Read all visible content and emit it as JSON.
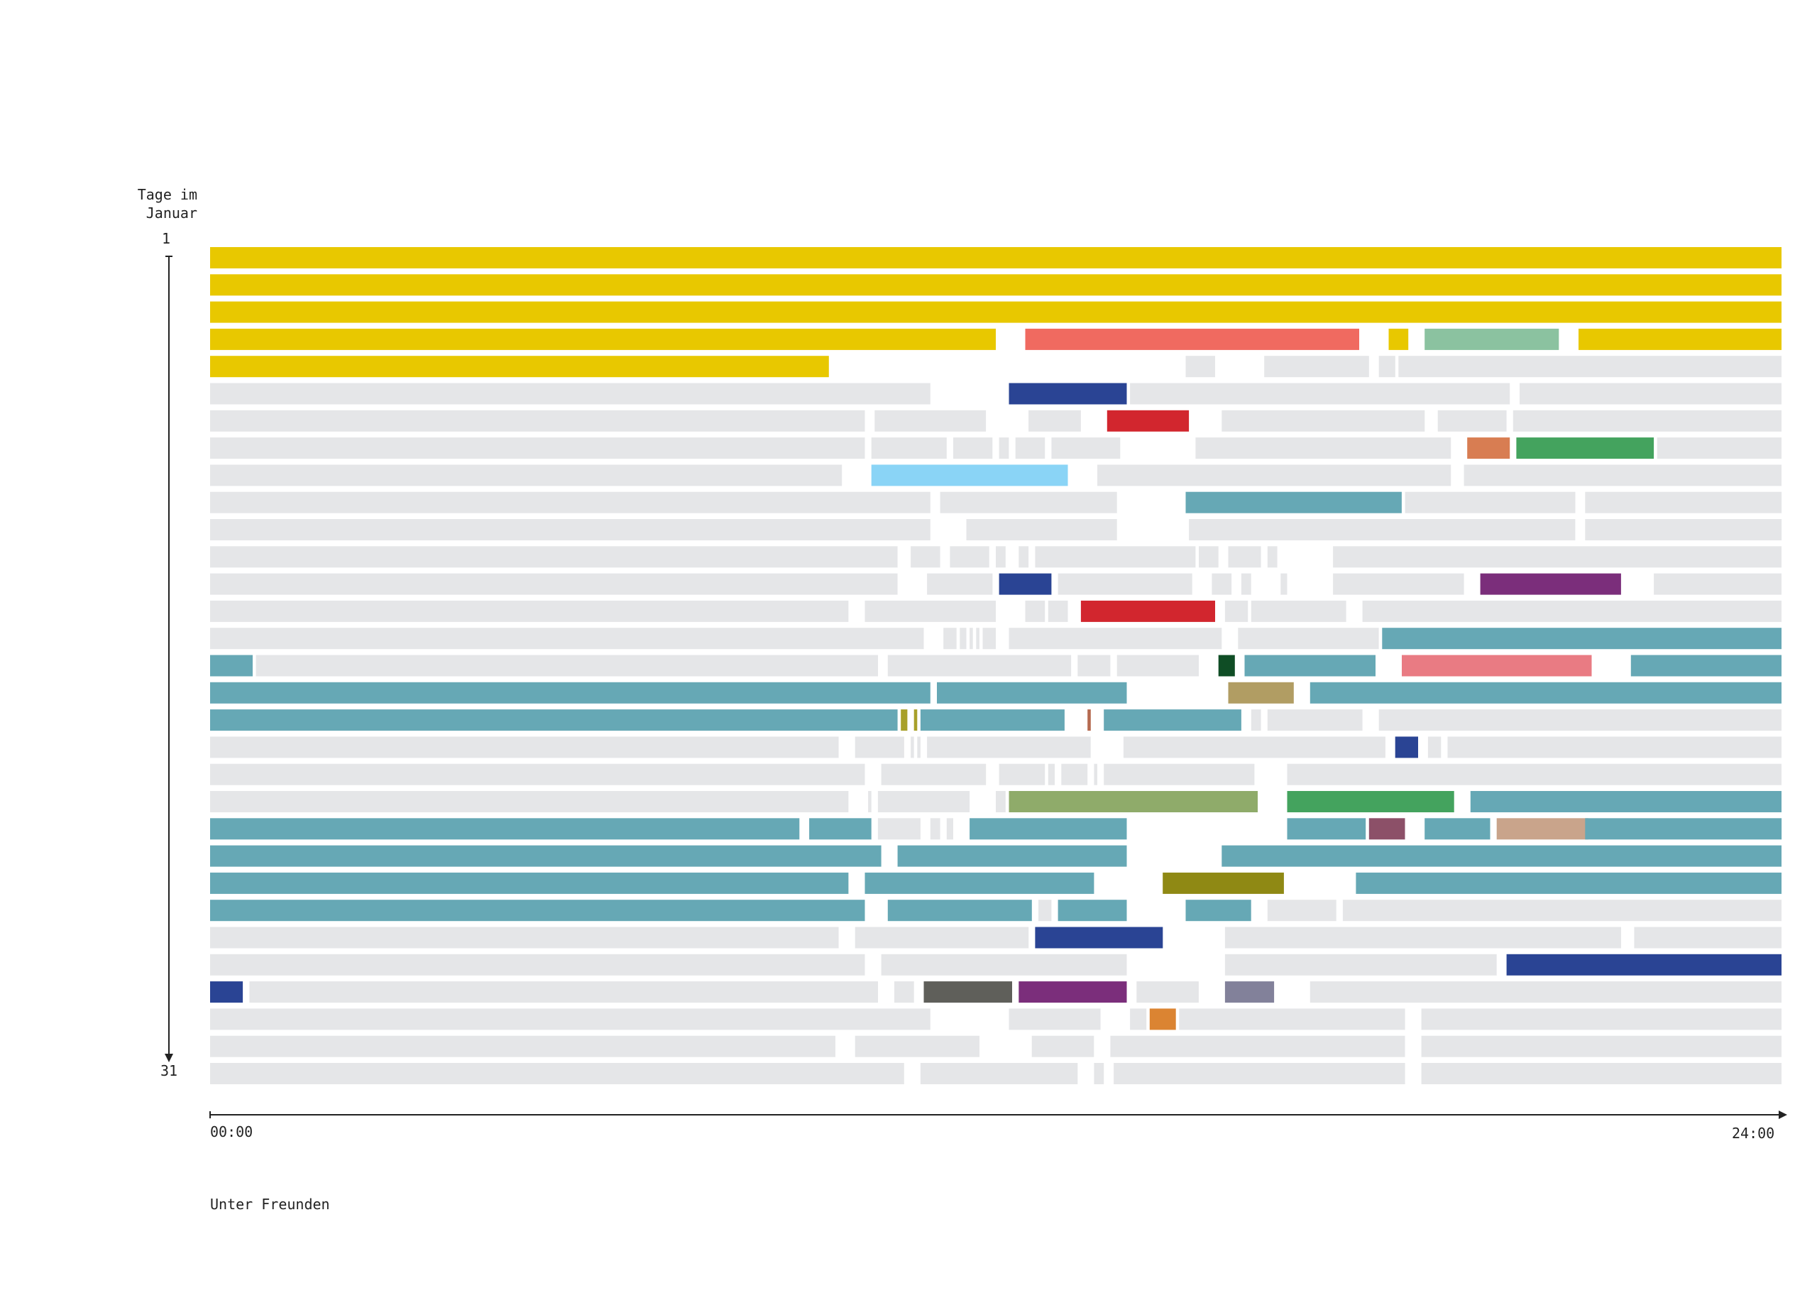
{
  "chart_data": {
    "type": "bar",
    "subtype": "daily-timeline",
    "title": "",
    "caption": "Unter Freunden",
    "ylabel": [
      "Tage im",
      "Januar"
    ],
    "y_tick_start": "1",
    "y_tick_end": "31",
    "x_tick_start": "00:00",
    "x_tick_end": "24:00",
    "xlim": [
      0,
      24
    ],
    "ylim": [
      1,
      31
    ],
    "grid": false,
    "legend": "none",
    "gap_color": "#e5e6e8",
    "colors": {
      "Y": "#e8c800",
      "SL": "#f06a60",
      "MI": "#8bc2a0",
      "NV": "#2a4494",
      "RD": "#d2262e",
      "OR": "#d87d52",
      "GR": "#44a35e",
      "LB": "#8ad4f6",
      "TL": "#66a8b5",
      "PU": "#7b2e7b",
      "DG": "#0f4d25",
      "PK": "#e97b83",
      "KH": "#b19d63",
      "OV": "#a8a02a",
      "BR": "#b56a50",
      "OG": "#8fab6a",
      "MV": "#8c5068",
      "TN": "#c9a48b",
      "OL": "#8f8914",
      "GY": "#5f5f5a",
      "GP": "#82819a",
      "OA": "#db8432",
      "G": "#e5e6e8"
    },
    "days": [
      {
        "day": 1,
        "segments": [
          [
            0,
            24,
            "Y"
          ]
        ]
      },
      {
        "day": 2,
        "segments": [
          [
            0,
            24,
            "Y"
          ]
        ]
      },
      {
        "day": 3,
        "segments": [
          [
            0,
            24,
            "Y"
          ]
        ]
      },
      {
        "day": 4,
        "segments": [
          [
            0,
            12.0,
            "Y"
          ],
          [
            12.45,
            17.55,
            "SL"
          ],
          [
            18.0,
            18.3,
            "Y"
          ],
          [
            18.55,
            20.6,
            "MI"
          ],
          [
            20.9,
            24,
            "Y"
          ]
        ]
      },
      {
        "day": 5,
        "segments": [
          [
            0,
            9.45,
            "Y"
          ],
          [
            14.9,
            15.35,
            "G"
          ],
          [
            16.1,
            17.7,
            "G"
          ],
          [
            17.85,
            18.1,
            "G"
          ],
          [
            18.15,
            24,
            "G"
          ]
        ]
      },
      {
        "day": 6,
        "segments": [
          [
            0,
            11.0,
            "G"
          ],
          [
            12.2,
            14.0,
            "NV"
          ],
          [
            14.05,
            19.85,
            "G"
          ],
          [
            20.0,
            24,
            "G"
          ]
        ]
      },
      {
        "day": 7,
        "segments": [
          [
            0,
            10.0,
            "G"
          ],
          [
            10.15,
            11.85,
            "G"
          ],
          [
            12.5,
            13.3,
            "G"
          ],
          [
            13.7,
            14.95,
            "RD"
          ],
          [
            15.45,
            18.55,
            "G"
          ],
          [
            18.75,
            19.8,
            "G"
          ],
          [
            19.9,
            24,
            "G"
          ]
        ]
      },
      {
        "day": 8,
        "segments": [
          [
            0,
            10.0,
            "G"
          ],
          [
            10.1,
            11.25,
            "G"
          ],
          [
            11.35,
            11.95,
            "G"
          ],
          [
            12.05,
            12.2,
            "G"
          ],
          [
            12.3,
            12.75,
            "G"
          ],
          [
            12.85,
            13.9,
            "G"
          ],
          [
            15.05,
            18.95,
            "G"
          ],
          [
            19.2,
            19.85,
            "OR"
          ],
          [
            19.95,
            22.05,
            "GR"
          ],
          [
            22.1,
            24,
            "G"
          ]
        ]
      },
      {
        "day": 9,
        "segments": [
          [
            0,
            9.65,
            "G"
          ],
          [
            10.1,
            13.1,
            "LB"
          ],
          [
            13.55,
            18.95,
            "G"
          ],
          [
            19.15,
            24,
            "G"
          ]
        ]
      },
      {
        "day": 10,
        "segments": [
          [
            0,
            11.0,
            "G"
          ],
          [
            11.15,
            13.85,
            "G"
          ],
          [
            14.9,
            18.2,
            "TL"
          ],
          [
            18.25,
            20.85,
            "G"
          ],
          [
            21.0,
            24,
            "G"
          ]
        ]
      },
      {
        "day": 11,
        "segments": [
          [
            0,
            11.0,
            "G"
          ],
          [
            11.55,
            13.85,
            "G"
          ],
          [
            14.95,
            20.85,
            "G"
          ],
          [
            21.0,
            24,
            "G"
          ]
        ]
      },
      {
        "day": 12,
        "segments": [
          [
            0,
            10.5,
            "G"
          ],
          [
            10.7,
            11.15,
            "G"
          ],
          [
            11.3,
            11.9,
            "G"
          ],
          [
            12.0,
            12.15,
            "G"
          ],
          [
            12.35,
            12.5,
            "G"
          ],
          [
            12.6,
            15.05,
            "G"
          ],
          [
            15.1,
            15.4,
            "G"
          ],
          [
            15.55,
            16.05,
            "G"
          ],
          [
            16.15,
            16.3,
            "G"
          ],
          [
            17.15,
            24,
            "G"
          ]
        ]
      },
      {
        "day": 13,
        "segments": [
          [
            0,
            10.5,
            "G"
          ],
          [
            10.95,
            11.95,
            "G"
          ],
          [
            12.05,
            12.85,
            "NV"
          ],
          [
            12.95,
            15.0,
            "G"
          ],
          [
            15.3,
            15.6,
            "G"
          ],
          [
            15.75,
            15.9,
            "G"
          ],
          [
            16.35,
            16.45,
            "G"
          ],
          [
            17.15,
            19.15,
            "G"
          ],
          [
            19.4,
            21.55,
            "PU"
          ],
          [
            22.05,
            24,
            "G"
          ]
        ]
      },
      {
        "day": 14,
        "segments": [
          [
            0,
            9.75,
            "G"
          ],
          [
            10.0,
            12.0,
            "G"
          ],
          [
            12.45,
            12.75,
            "G"
          ],
          [
            12.8,
            13.1,
            "G"
          ],
          [
            13.3,
            15.35,
            "RD"
          ],
          [
            15.5,
            15.85,
            "G"
          ],
          [
            15.9,
            17.35,
            "G"
          ],
          [
            17.6,
            24,
            "G"
          ]
        ]
      },
      {
        "day": 15,
        "segments": [
          [
            0,
            10.9,
            "G"
          ],
          [
            11.2,
            11.4,
            "G"
          ],
          [
            11.45,
            11.55,
            "G"
          ],
          [
            11.6,
            11.65,
            "G"
          ],
          [
            11.7,
            11.75,
            "G"
          ],
          [
            11.8,
            12.0,
            "G"
          ],
          [
            12.2,
            15.45,
            "G"
          ],
          [
            15.7,
            17.85,
            "G"
          ],
          [
            17.9,
            24,
            "TL"
          ]
        ]
      },
      {
        "day": 16,
        "segments": [
          [
            0,
            0.65,
            "TL"
          ],
          [
            0.7,
            10.2,
            "G"
          ],
          [
            10.35,
            13.15,
            "G"
          ],
          [
            13.25,
            13.75,
            "G"
          ],
          [
            13.85,
            15.1,
            "G"
          ],
          [
            15.4,
            15.65,
            "DG"
          ],
          [
            15.8,
            17.8,
            "TL"
          ],
          [
            18.2,
            21.1,
            "PK"
          ],
          [
            21.7,
            24,
            "TL"
          ]
        ]
      },
      {
        "day": 17,
        "segments": [
          [
            0,
            11.0,
            "TL"
          ],
          [
            11.1,
            14.0,
            "TL"
          ],
          [
            15.55,
            16.55,
            "KH"
          ],
          [
            16.8,
            24,
            "TL"
          ]
        ]
      },
      {
        "day": 18,
        "segments": [
          [
            0,
            10.5,
            "TL"
          ],
          [
            10.55,
            10.65,
            "OV"
          ],
          [
            10.75,
            10.8,
            "OV"
          ],
          [
            10.85,
            13.05,
            "TL"
          ],
          [
            13.4,
            13.45,
            "BR"
          ],
          [
            13.65,
            15.75,
            "TL"
          ],
          [
            15.9,
            16.05,
            "G"
          ],
          [
            16.15,
            17.6,
            "G"
          ],
          [
            17.85,
            24,
            "G"
          ]
        ]
      },
      {
        "day": 19,
        "segments": [
          [
            0,
            9.6,
            "G"
          ],
          [
            9.85,
            10.6,
            "G"
          ],
          [
            10.7,
            10.75,
            "G"
          ],
          [
            10.8,
            10.85,
            "G"
          ],
          [
            10.95,
            13.45,
            "G"
          ],
          [
            13.95,
            17.95,
            "G"
          ],
          [
            18.1,
            18.45,
            "NV"
          ],
          [
            18.6,
            18.8,
            "G"
          ],
          [
            18.9,
            24,
            "G"
          ]
        ]
      },
      {
        "day": 20,
        "segments": [
          [
            0,
            10.0,
            "G"
          ],
          [
            10.25,
            11.85,
            "G"
          ],
          [
            12.05,
            12.75,
            "G"
          ],
          [
            12.8,
            12.9,
            "G"
          ],
          [
            13.0,
            13.4,
            "G"
          ],
          [
            13.5,
            13.55,
            "G"
          ],
          [
            13.65,
            15.95,
            "G"
          ],
          [
            16.45,
            24,
            "G"
          ]
        ]
      },
      {
        "day": 21,
        "segments": [
          [
            0,
            9.75,
            "G"
          ],
          [
            10.05,
            10.1,
            "G"
          ],
          [
            10.2,
            11.6,
            "G"
          ],
          [
            12.0,
            12.15,
            "G"
          ],
          [
            12.2,
            16.0,
            "OG"
          ],
          [
            16.45,
            19.0,
            "GR"
          ],
          [
            19.25,
            24,
            "TL"
          ]
        ]
      },
      {
        "day": 22,
        "segments": [
          [
            0,
            9.0,
            "TL"
          ],
          [
            9.15,
            10.1,
            "TL"
          ],
          [
            10.2,
            10.85,
            "G"
          ],
          [
            11.0,
            11.15,
            "G"
          ],
          [
            11.25,
            11.35,
            "G"
          ],
          [
            11.6,
            14.0,
            "TL"
          ],
          [
            16.45,
            17.65,
            "TL"
          ],
          [
            17.7,
            18.25,
            "MV"
          ],
          [
            18.55,
            19.55,
            "TL"
          ],
          [
            19.65,
            21.05,
            "TN"
          ],
          [
            21.0,
            24,
            "TL"
          ]
        ]
      },
      {
        "day": 23,
        "segments": [
          [
            0,
            10.25,
            "TL"
          ],
          [
            10.5,
            14.0,
            "TL"
          ],
          [
            15.45,
            24,
            "TL"
          ]
        ]
      },
      {
        "day": 24,
        "segments": [
          [
            0,
            9.75,
            "TL"
          ],
          [
            10.0,
            13.5,
            "TL"
          ],
          [
            14.55,
            16.4,
            "OL"
          ],
          [
            17.5,
            24,
            "TL"
          ]
        ]
      },
      {
        "day": 25,
        "segments": [
          [
            0,
            10.0,
            "TL"
          ],
          [
            10.35,
            12.55,
            "TL"
          ],
          [
            12.65,
            12.85,
            "G"
          ],
          [
            12.95,
            14.0,
            "TL"
          ],
          [
            14.9,
            15.9,
            "TL"
          ],
          [
            16.15,
            17.2,
            "G"
          ],
          [
            17.3,
            24,
            "G"
          ]
        ]
      },
      {
        "day": 26,
        "segments": [
          [
            0,
            9.6,
            "G"
          ],
          [
            9.85,
            12.5,
            "G"
          ],
          [
            12.6,
            14.55,
            "NV"
          ],
          [
            15.5,
            21.55,
            "G"
          ],
          [
            21.75,
            24,
            "G"
          ]
        ]
      },
      {
        "day": 27,
        "segments": [
          [
            0,
            10.0,
            "G"
          ],
          [
            10.25,
            14.0,
            "G"
          ],
          [
            15.5,
            19.65,
            "G"
          ],
          [
            19.8,
            24,
            "NV"
          ]
        ]
      },
      {
        "day": 28,
        "segments": [
          [
            0,
            0.5,
            "NV"
          ],
          [
            0.6,
            10.2,
            "G"
          ],
          [
            10.45,
            10.75,
            "G"
          ],
          [
            10.9,
            12.25,
            "GY"
          ],
          [
            12.35,
            14.0,
            "PU"
          ],
          [
            14.15,
            15.1,
            "G"
          ],
          [
            15.5,
            16.25,
            "GP"
          ],
          [
            16.8,
            24,
            "G"
          ]
        ]
      },
      {
        "day": 29,
        "segments": [
          [
            0,
            11.0,
            "G"
          ],
          [
            12.2,
            13.6,
            "G"
          ],
          [
            14.05,
            14.3,
            "G"
          ],
          [
            14.35,
            14.75,
            "OA"
          ],
          [
            14.8,
            18.25,
            "G"
          ],
          [
            18.5,
            24,
            "G"
          ]
        ]
      },
      {
        "day": 30,
        "segments": [
          [
            0,
            9.55,
            "G"
          ],
          [
            9.85,
            11.75,
            "G"
          ],
          [
            12.55,
            13.5,
            "G"
          ],
          [
            13.75,
            18.25,
            "G"
          ],
          [
            18.5,
            24,
            "G"
          ]
        ]
      },
      {
        "day": 31,
        "segments": [
          [
            0,
            10.6,
            "G"
          ],
          [
            10.85,
            13.25,
            "G"
          ],
          [
            13.5,
            13.65,
            "G"
          ],
          [
            13.8,
            18.25,
            "G"
          ],
          [
            18.5,
            24,
            "G"
          ]
        ]
      }
    ]
  }
}
